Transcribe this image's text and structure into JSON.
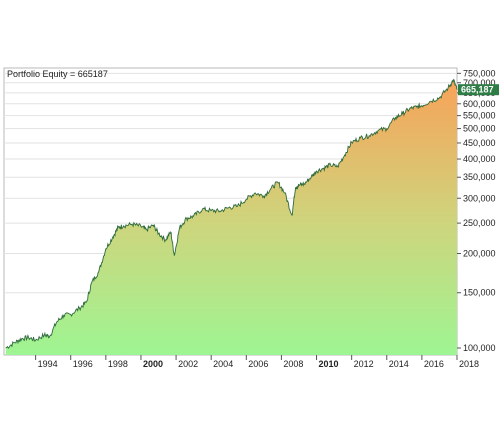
{
  "chart_data": {
    "type": "area",
    "title": "Portfolio Equity = 665187",
    "y_scale": "log",
    "ylim": [
      95000,
      780000
    ],
    "xlim": [
      1992.2,
      2018.0
    ],
    "grid": true,
    "y_ticks": [
      {
        "value": 100000,
        "label": "100,000"
      },
      {
        "value": 150000,
        "label": "150,000"
      },
      {
        "value": 200000,
        "label": "200,000"
      },
      {
        "value": 250000,
        "label": "250,000"
      },
      {
        "value": 300000,
        "label": "300,000"
      },
      {
        "value": 350000,
        "label": "350,000"
      },
      {
        "value": 400000,
        "label": "400,000"
      },
      {
        "value": 450000,
        "label": "450,000"
      },
      {
        "value": 500000,
        "label": "500,000"
      },
      {
        "value": 550000,
        "label": "550,000"
      },
      {
        "value": 600000,
        "label": "600,000"
      },
      {
        "value": 650000,
        "label": "650,000"
      },
      {
        "value": 700000,
        "label": "700,000"
      },
      {
        "value": 750000,
        "label": "750,000"
      }
    ],
    "x_ticks": [
      {
        "value": 1994,
        "label": "1994",
        "bold": false
      },
      {
        "value": 1996,
        "label": "1996",
        "bold": false
      },
      {
        "value": 1998,
        "label": "1998",
        "bold": false
      },
      {
        "value": 2000,
        "label": "2000",
        "bold": true
      },
      {
        "value": 2002,
        "label": "2002",
        "bold": false
      },
      {
        "value": 2004,
        "label": "2004",
        "bold": false
      },
      {
        "value": 2006,
        "label": "2006",
        "bold": false
      },
      {
        "value": 2008,
        "label": "2008",
        "bold": false
      },
      {
        "value": 2010,
        "label": "2010",
        "bold": true
      },
      {
        "value": 2012,
        "label": "2012",
        "bold": false
      },
      {
        "value": 2014,
        "label": "2014",
        "bold": false
      },
      {
        "value": 2016,
        "label": "2016",
        "bold": false
      },
      {
        "value": 2018,
        "label": "2018",
        "bold": false
      }
    ],
    "last_value": {
      "value": 665187,
      "label": "665,187"
    },
    "series": [
      {
        "x": [
          1992.3,
          1992.8,
          1993.2,
          1993.6,
          1994.0,
          1994.5,
          1994.8,
          1995.2,
          1995.6,
          1996.0,
          1996.5,
          1996.9,
          1997.2,
          1997.6,
          1998.0,
          1998.4,
          1998.7,
          1999.0,
          1999.5,
          2000.0,
          2000.3,
          2000.7,
          2001.0,
          2001.4,
          2001.7,
          2001.9,
          2002.2,
          2002.6,
          2003.0,
          2003.5,
          2004.0,
          2004.5,
          2005.0,
          2005.5,
          2006.0,
          2006.5,
          2007.0,
          2007.4,
          2007.8,
          2008.2,
          2008.6,
          2008.8,
          2009.0,
          2009.3,
          2009.7,
          2010.0,
          2010.4,
          2010.8,
          2011.2,
          2011.6,
          2012.0,
          2012.5,
          2013.0,
          2013.5,
          2014.0,
          2014.5,
          2014.9,
          2015.3,
          2015.7,
          2016.0,
          2016.5,
          2017.0,
          2017.5,
          2017.8,
          2018.0
        ],
        "y": [
          100000,
          104000,
          107000,
          108000,
          106000,
          110000,
          109000,
          121000,
          127000,
          128000,
          134000,
          140000,
          162000,
          175000,
          207000,
          226000,
          242000,
          245000,
          248000,
          244000,
          238000,
          246000,
          232000,
          221000,
          234000,
          197000,
          242000,
          259000,
          263000,
          277000,
          274000,
          273000,
          280000,
          283000,
          298000,
          312000,
          305000,
          322000,
          337000,
          312000,
          265000,
          325000,
          330000,
          333000,
          351000,
          366000,
          374000,
          383000,
          378000,
          412000,
          452000,
          467000,
          475000,
          493000,
          500000,
          542000,
          558000,
          578000,
          586000,
          592000,
          612000,
          627000,
          675000,
          715000,
          665187
        ]
      }
    ]
  }
}
